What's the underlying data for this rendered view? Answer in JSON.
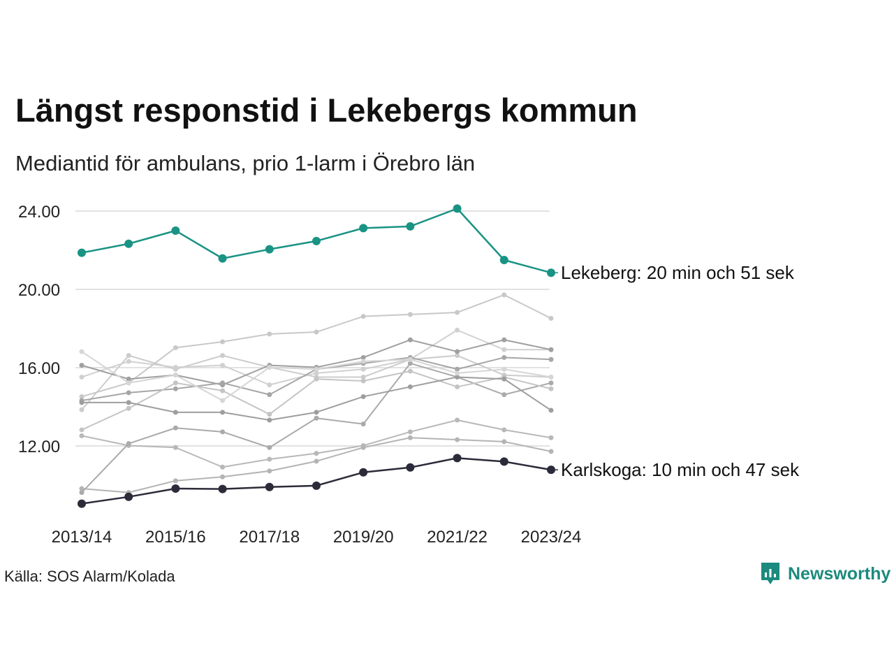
{
  "title": "Längst responstid i Lekebergs kommun",
  "subtitle": "Mediantid för ambulans, prio 1-larm i Örebro län",
  "source": "Källa: SOS Alarm/Kolada",
  "brand": "Newsworthy",
  "colors": {
    "highlight_top": "#1a9384",
    "highlight_bottom": "#2b2b3a",
    "brand": "#1c8a7e",
    "gridline": "#e2e2e2"
  },
  "chart_data": {
    "type": "line",
    "x": [
      "2013/14",
      "2014/15",
      "2015/16",
      "2016/17",
      "2017/18",
      "2018/19",
      "2019/20",
      "2020/21",
      "2021/22",
      "2022/23",
      "2023/24"
    ],
    "x_tick_labels": [
      "2013/14",
      "2015/16",
      "2017/18",
      "2019/20",
      "2021/22",
      "2023/24"
    ],
    "y_ticks": [
      "24.00",
      "20.00",
      "16.00",
      "12.00"
    ],
    "y_tick_values": [
      24,
      20,
      16,
      12
    ],
    "ylim": [
      8.5,
      24.5
    ],
    "grid": true,
    "highlighted": [
      {
        "label": "Lekeberg: 20 min och 51 sek",
        "color": "#1a9384",
        "values": [
          21.87,
          22.33,
          23.0,
          21.58,
          22.05,
          22.47,
          23.13,
          23.22,
          24.13,
          21.5,
          20.85
        ]
      },
      {
        "label": "Karlskoga: 10 min och 47 sek",
        "color": "#2b2b3a",
        "values": [
          9.05,
          9.4,
          9.82,
          9.8,
          9.9,
          9.97,
          10.65,
          10.9,
          11.38,
          11.2,
          10.78
        ]
      }
    ],
    "background_series": [
      {
        "color": "#cccccc",
        "values": [
          13.85,
          16.62,
          15.92,
          16.62,
          16.02,
          15.52,
          15.52,
          16.42,
          16.62,
          15.62,
          15.52
        ]
      },
      {
        "color": "#d0d0d0",
        "values": [
          15.52,
          16.32,
          16.02,
          16.12,
          15.12,
          15.72,
          15.92,
          16.42,
          17.92,
          16.92,
          16.92
        ]
      },
      {
        "color": "#c8c8c8",
        "values": [
          14.52,
          15.22,
          17.02,
          17.32,
          17.72,
          17.82,
          18.62,
          18.72,
          18.82,
          19.72,
          18.52
        ]
      },
      {
        "color": "#b8b8b8",
        "values": [
          12.52,
          12.02,
          11.92,
          10.92,
          11.32,
          11.62,
          12.02,
          12.72,
          13.32,
          12.82,
          12.42
        ]
      },
      {
        "color": "#a0a0a0",
        "values": [
          16.12,
          15.42,
          15.62,
          15.12,
          16.12,
          16.02,
          16.52,
          17.42,
          16.82,
          17.42,
          16.92
        ]
      },
      {
        "color": "#a6a6a6",
        "values": [
          14.32,
          14.72,
          14.92,
          15.22,
          14.62,
          15.92,
          16.22,
          16.52,
          15.92,
          16.52,
          16.42
        ]
      },
      {
        "color": "#b4b4b4",
        "values": [
          9.82,
          9.62,
          10.22,
          10.42,
          10.72,
          11.22,
          11.92,
          12.42,
          12.32,
          12.22,
          11.72
        ]
      },
      {
        "color": "#aaaaaa",
        "values": [
          9.62,
          12.12,
          12.92,
          12.72,
          11.92,
          13.42,
          13.12,
          16.22,
          15.52,
          14.62,
          15.22
        ]
      },
      {
        "color": "#c4c4c4",
        "values": [
          12.82,
          13.92,
          15.22,
          14.82,
          13.62,
          15.42,
          15.32,
          15.82,
          15.02,
          15.52,
          14.92
        ]
      },
      {
        "color": "#9e9e9e",
        "values": [
          14.22,
          14.22,
          13.72,
          13.72,
          13.32,
          13.72,
          14.52,
          15.02,
          15.52,
          15.42,
          13.82
        ]
      },
      {
        "color": "#d6d6d6",
        "values": [
          16.82,
          15.22,
          15.62,
          14.32,
          16.02,
          15.92,
          16.32,
          16.42,
          15.72,
          15.92,
          15.52
        ]
      }
    ]
  }
}
